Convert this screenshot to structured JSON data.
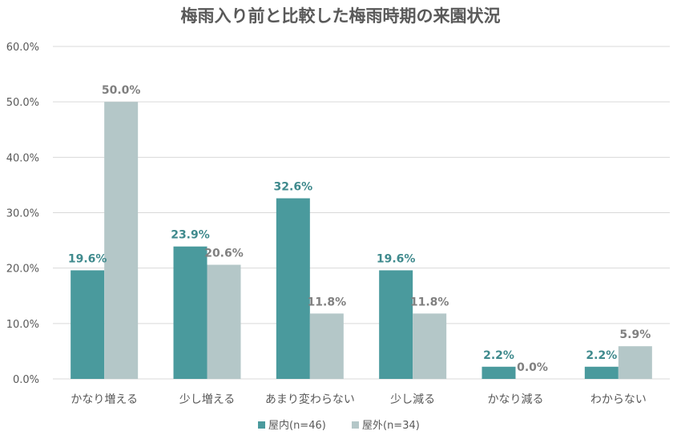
{
  "chart_data": {
    "type": "bar",
    "title": "梅雨入り前と比較した梅雨時期の来園状況",
    "categories": [
      "かなり増える",
      "少し増える",
      "あまり変わらない",
      "少し減る",
      "かなり減る",
      "わからない"
    ],
    "series": [
      {
        "name": "屋内(n=46)",
        "values": [
          19.6,
          23.9,
          32.6,
          19.6,
          2.2,
          2.2
        ],
        "labels": [
          "19.6%",
          "23.9%",
          "32.6%",
          "19.6%",
          "2.2%",
          "2.2%"
        ],
        "color": "#4a9a9d",
        "label_color": "#3f8a8d"
      },
      {
        "name": "屋外(n=34)",
        "values": [
          50.0,
          20.6,
          11.8,
          11.8,
          0.0,
          5.9
        ],
        "labels": [
          "50.0%",
          "20.6%",
          "11.8%",
          "11.8%",
          "0.0%",
          "5.9%"
        ],
        "color": "#b4c7c8",
        "label_color": "#808080"
      }
    ],
    "yticks": [
      "0.0%",
      "10.0%",
      "20.0%",
      "30.0%",
      "40.0%",
      "50.0%",
      "60.0%"
    ],
    "ylim": [
      0,
      60
    ],
    "xlabel": "",
    "ylabel": "",
    "grid": true,
    "legend": "bottom"
  }
}
